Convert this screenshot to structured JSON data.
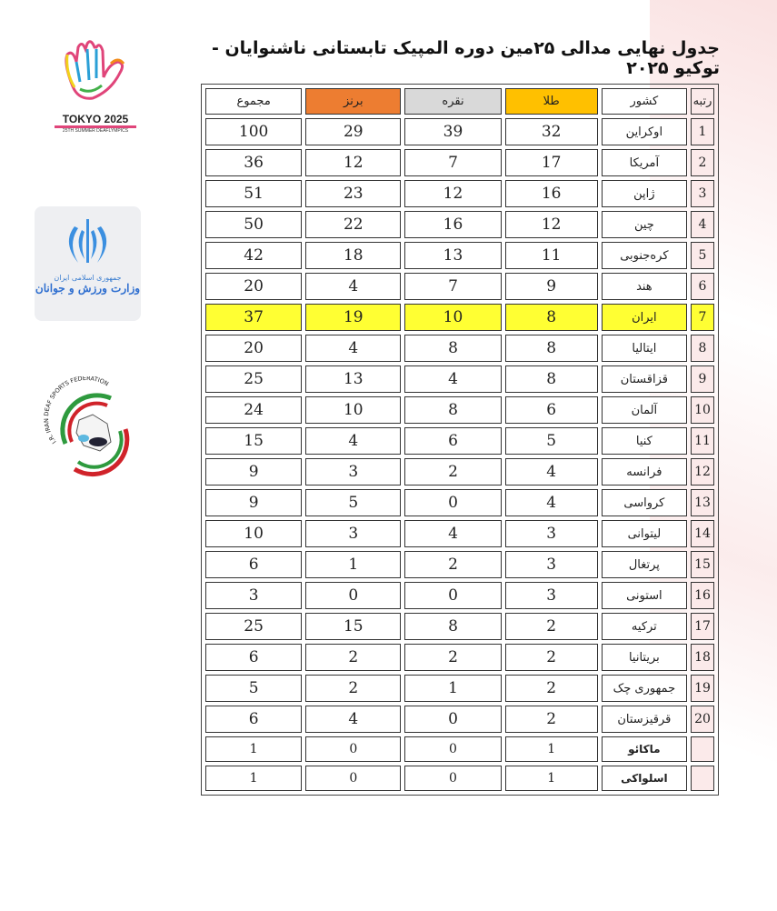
{
  "title": "جدول نهایی مدالی ۲۵مین دوره المپیک تابستانی ناشنوایان - توکیو ۲۰۲۵",
  "logos": {
    "tokyo": {
      "text": "TOKYO 2025",
      "subtitle": "25TH SUMMER DEAFLYMPICS"
    },
    "ministry": {
      "line1": "جمهوری اسلامی ایران",
      "line2": "وزارت ورزش و جوانان"
    },
    "federation": {
      "text": "I.R. IRAN DEAF SPORTS FEDERATION"
    }
  },
  "colors": {
    "gold": "#ffc000",
    "silver": "#d9d9d9",
    "bronze": "#ed7d31",
    "highlight": "#ffff33"
  },
  "table": {
    "headers": {
      "rank": "رتبه",
      "country": "کشور",
      "gold": "طلا",
      "silver": "نقره",
      "bronze": "برنز",
      "total": "مجموع"
    },
    "rows": [
      {
        "rank": "1",
        "country": "اوکراین",
        "gold": "32",
        "silver": "39",
        "bronze": "29",
        "total": "100"
      },
      {
        "rank": "2",
        "country": "آمریکا",
        "gold": "17",
        "silver": "7",
        "bronze": "12",
        "total": "36"
      },
      {
        "rank": "3",
        "country": "ژاپن",
        "gold": "16",
        "silver": "12",
        "bronze": "23",
        "total": "51"
      },
      {
        "rank": "4",
        "country": "چین",
        "gold": "12",
        "silver": "16",
        "bronze": "22",
        "total": "50"
      },
      {
        "rank": "5",
        "country": "کره‌جنوبی",
        "gold": "11",
        "silver": "13",
        "bronze": "18",
        "total": "42"
      },
      {
        "rank": "6",
        "country": "هند",
        "gold": "9",
        "silver": "7",
        "bronze": "4",
        "total": "20"
      },
      {
        "rank": "7",
        "country": "ایران",
        "gold": "8",
        "silver": "10",
        "bronze": "19",
        "total": "37"
      },
      {
        "rank": "8",
        "country": "ایتالیا",
        "gold": "8",
        "silver": "8",
        "bronze": "4",
        "total": "20"
      },
      {
        "rank": "9",
        "country": "قزاقستان",
        "gold": "8",
        "silver": "4",
        "bronze": "13",
        "total": "25"
      },
      {
        "rank": "10",
        "country": "آلمان",
        "gold": "6",
        "silver": "8",
        "bronze": "10",
        "total": "24"
      },
      {
        "rank": "11",
        "country": "کنیا",
        "gold": "5",
        "silver": "6",
        "bronze": "4",
        "total": "15"
      },
      {
        "rank": "12",
        "country": "فرانسه",
        "gold": "4",
        "silver": "2",
        "bronze": "3",
        "total": "9"
      },
      {
        "rank": "13",
        "country": "کرواسی",
        "gold": "4",
        "silver": "0",
        "bronze": "5",
        "total": "9"
      },
      {
        "rank": "14",
        "country": "لیتوانی",
        "gold": "3",
        "silver": "4",
        "bronze": "3",
        "total": "10"
      },
      {
        "rank": "15",
        "country": "پرتغال",
        "gold": "3",
        "silver": "2",
        "bronze": "1",
        "total": "6"
      },
      {
        "rank": "16",
        "country": "استونی",
        "gold": "3",
        "silver": "0",
        "bronze": "0",
        "total": "3"
      },
      {
        "rank": "17",
        "country": "ترکیه",
        "gold": "2",
        "silver": "8",
        "bronze": "15",
        "total": "25"
      },
      {
        "rank": "18",
        "country": "بریتانیا",
        "gold": "2",
        "silver": "2",
        "bronze": "2",
        "total": "6"
      },
      {
        "rank": "19",
        "country": "جمهوری چک",
        "gold": "2",
        "silver": "1",
        "bronze": "2",
        "total": "5"
      },
      {
        "rank": "20",
        "country": "قرقیزستان",
        "gold": "2",
        "silver": "0",
        "bronze": "4",
        "total": "6"
      },
      {
        "rank": "",
        "country": "ماکائو",
        "gold": "1",
        "silver": "0",
        "bronze": "0",
        "total": "1"
      },
      {
        "rank": "",
        "country": "اسلواکی",
        "gold": "1",
        "silver": "0",
        "bronze": "0",
        "total": "1"
      }
    ]
  }
}
